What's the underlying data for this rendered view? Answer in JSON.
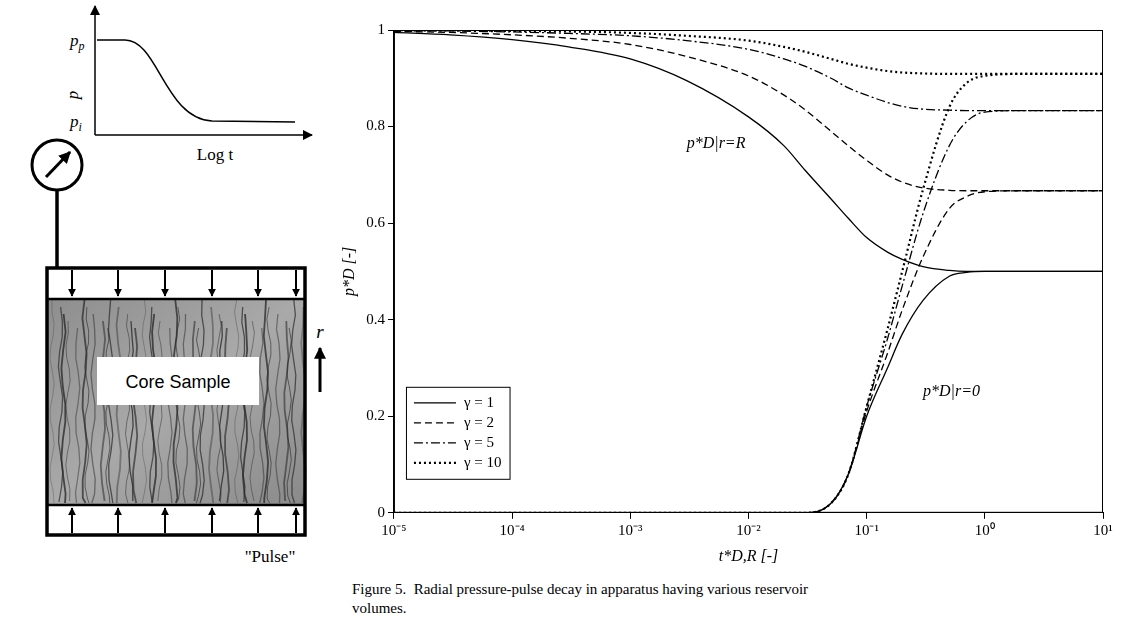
{
  "diagram": {
    "inset_plot": {
      "y_label": "p",
      "y_marks": [
        {
          "text": "p",
          "subscript": "p"
        },
        {
          "text": "p",
          "subscript": "i"
        }
      ],
      "x_label": "Log t"
    },
    "sample_label": "Core Sample",
    "axis_label": "r",
    "inlet_label": "\"Pulse\""
  },
  "chart_data": {
    "type": "line",
    "x_label": "t*D,R [-]",
    "y_label": "p*D [-]",
    "log": "x",
    "grid": false,
    "legend": "lower left",
    "xlim": [
      1e-05,
      10
    ],
    "xticks": [
      {
        "value": 1e-05,
        "label": "10⁻⁵"
      },
      {
        "value": 0.0001,
        "label": "10⁻⁴"
      },
      {
        "value": 0.001,
        "label": "10⁻³"
      },
      {
        "value": 0.01,
        "label": "10⁻²"
      },
      {
        "value": 0.1,
        "label": "10⁻¹"
      },
      {
        "value": 1,
        "label": "10⁰"
      },
      {
        "value": 10,
        "label": "10¹"
      }
    ],
    "ylim": [
      0,
      1
    ],
    "yticks": [
      0,
      0.2,
      0.4,
      0.6,
      0.8,
      1
    ],
    "x": [
      1e-05,
      3e-05,
      0.0001,
      0.0003,
      0.001,
      0.003,
      0.01,
      0.02,
      0.03,
      0.05,
      0.07,
      0.1,
      0.15,
      0.2,
      0.3,
      0.5,
      0.7,
      1,
      2,
      5,
      10
    ],
    "series": [
      {
        "name": "γ = 1",
        "color": "#000000",
        "line_style": "solid",
        "values": [
          0.995,
          0.99,
          0.98,
          0.965,
          0.94,
          0.895,
          0.82,
          0.76,
          0.71,
          0.65,
          0.61,
          0.57,
          0.54,
          0.525,
          0.51,
          0.502,
          0.5,
          0.5,
          0.5,
          0.5,
          0.5
        ],
        "center_values": [
          0,
          0,
          0,
          0,
          0,
          0,
          0,
          0,
          0,
          0.02,
          0.08,
          0.2,
          0.3,
          0.37,
          0.44,
          0.49,
          0.498,
          0.5,
          0.5,
          0.5,
          0.5
        ]
      },
      {
        "name": "γ = 2",
        "color": "#000000",
        "line_style": "dashed",
        "values": [
          0.997,
          0.995,
          0.99,
          0.983,
          0.97,
          0.945,
          0.905,
          0.865,
          0.835,
          0.79,
          0.76,
          0.73,
          0.7,
          0.685,
          0.673,
          0.668,
          0.667,
          0.667,
          0.667,
          0.667,
          0.667
        ],
        "center_values": [
          0,
          0,
          0,
          0,
          0,
          0,
          0,
          0,
          0,
          0.02,
          0.08,
          0.21,
          0.33,
          0.42,
          0.53,
          0.63,
          0.655,
          0.665,
          0.667,
          0.667,
          0.667
        ]
      },
      {
        "name": "γ = 5",
        "color": "#000000",
        "line_style": "dashdot",
        "values": [
          0.999,
          0.998,
          0.996,
          0.993,
          0.988,
          0.978,
          0.96,
          0.94,
          0.925,
          0.9,
          0.88,
          0.865,
          0.85,
          0.842,
          0.836,
          0.834,
          0.833,
          0.833,
          0.833,
          0.833,
          0.833
        ],
        "center_values": [
          0,
          0,
          0,
          0,
          0,
          0,
          0,
          0,
          0,
          0.02,
          0.08,
          0.22,
          0.36,
          0.47,
          0.62,
          0.76,
          0.81,
          0.83,
          0.833,
          0.833,
          0.833
        ]
      },
      {
        "name": "γ = 10",
        "color": "#000000",
        "line_style": "dotted",
        "values": [
          0.999,
          0.999,
          0.998,
          0.997,
          0.994,
          0.988,
          0.978,
          0.965,
          0.955,
          0.94,
          0.93,
          0.922,
          0.915,
          0.912,
          0.91,
          0.909,
          0.909,
          0.909,
          0.909,
          0.909,
          0.909
        ],
        "center_values": [
          0,
          0,
          0,
          0,
          0,
          0,
          0,
          0,
          0,
          0.02,
          0.08,
          0.22,
          0.38,
          0.5,
          0.67,
          0.84,
          0.89,
          0.905,
          0.909,
          0.909,
          0.909
        ]
      }
    ],
    "annotations": [
      {
        "text": "p*D|r=R",
        "x": 0.003,
        "y": 0.765
      },
      {
        "text": "p*D|r=0",
        "x": 0.3,
        "y": 0.25
      }
    ]
  },
  "caption": "Figure 5.  Radial pressure-pulse decay in apparatus having various reservoir volumes."
}
